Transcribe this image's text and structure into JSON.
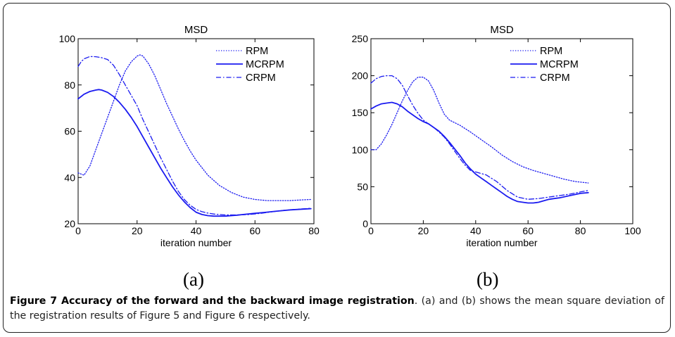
{
  "colors": {
    "line": "#1b1bf0",
    "axis": "#000000",
    "caption_text": "#222222"
  },
  "panel_labels": [
    "(a)",
    "(b)"
  ],
  "caption": {
    "title": "Figure 7 Accuracy of the forward and the backward image registration",
    "body": ". (a) and (b) shows the mean square deviation of the registration results of Figure 5 and Figure 6 respectively."
  },
  "chart_data": [
    {
      "type": "line",
      "title": "MSD",
      "xlabel": "iteration number",
      "ylabel": "",
      "xlim": [
        0,
        80
      ],
      "ylim": [
        20,
        100
      ],
      "xticks": [
        0,
        20,
        40,
        60,
        80
      ],
      "yticks": [
        20,
        40,
        60,
        80,
        100
      ],
      "legend_position": "top-right",
      "series": [
        {
          "name": "RPM",
          "style": "dotted",
          "x": [
            0,
            2,
            4,
            6,
            8,
            10,
            12,
            14,
            16,
            18,
            20,
            21,
            22,
            24,
            26,
            28,
            30,
            32,
            34,
            36,
            38,
            40,
            44,
            48,
            52,
            56,
            60,
            64,
            68,
            72,
            76,
            79
          ],
          "y": [
            42,
            41,
            45,
            52,
            59,
            66,
            73,
            80,
            86,
            90,
            92.5,
            93,
            92.5,
            89,
            84,
            78,
            72,
            66.5,
            61,
            56,
            51.5,
            47.5,
            41,
            36.5,
            33.5,
            31.5,
            30.5,
            30,
            30,
            30,
            30.3,
            30.5
          ]
        },
        {
          "name": "MCRPM",
          "style": "solid",
          "x": [
            0,
            2,
            4,
            6,
            7,
            8,
            10,
            12,
            14,
            16,
            18,
            20,
            22,
            24,
            26,
            28,
            30,
            32,
            34,
            36,
            38,
            40,
            42,
            44,
            46,
            48,
            50,
            52,
            54,
            56,
            60,
            64,
            68,
            72,
            76,
            79
          ],
          "y": [
            74,
            76,
            77.2,
            77.8,
            78,
            77.8,
            76.8,
            75,
            72.5,
            69.5,
            66,
            62,
            57.5,
            53,
            48.5,
            44,
            40,
            36,
            32.5,
            29.5,
            27,
            25,
            24,
            23.5,
            23.3,
            23.3,
            23.3,
            23.5,
            23.7,
            24,
            24.5,
            25,
            25.5,
            26,
            26.3,
            26.5
          ]
        },
        {
          "name": "CRPM",
          "style": "dashdot",
          "x": [
            0,
            1,
            2,
            4,
            6,
            8,
            10,
            12,
            14,
            16,
            18,
            20,
            22,
            24,
            26,
            28,
            30,
            32,
            34,
            36,
            38,
            40,
            42,
            44,
            46,
            48,
            50,
            54,
            58,
            62,
            66,
            70,
            74,
            79
          ],
          "y": [
            88,
            90,
            91.3,
            92.3,
            92.2,
            91.8,
            91,
            88.5,
            84.5,
            80,
            75.5,
            71,
            65,
            59.5,
            54,
            48.5,
            43.5,
            38.5,
            34,
            30.5,
            28,
            26.2,
            25.2,
            24.6,
            24.2,
            24,
            23.8,
            23.8,
            24,
            24.5,
            25.2,
            25.8,
            26.2,
            26.7
          ]
        }
      ]
    },
    {
      "type": "line",
      "title": "MSD",
      "xlabel": "iteration number",
      "ylabel": "",
      "xlim": [
        0,
        100
      ],
      "ylim": [
        0,
        250
      ],
      "xticks": [
        0,
        20,
        40,
        60,
        80,
        100
      ],
      "yticks": [
        0,
        50,
        100,
        150,
        200,
        250
      ],
      "legend_position": "top-right",
      "series": [
        {
          "name": "RPM",
          "style": "dotted",
          "x": [
            0,
            2,
            4,
            6,
            8,
            10,
            12,
            14,
            16,
            18,
            20,
            22,
            24,
            26,
            28,
            30,
            34,
            38,
            42,
            46,
            50,
            54,
            58,
            62,
            66,
            70,
            74,
            78,
            83
          ],
          "y": [
            100,
            100,
            108,
            120,
            134,
            150,
            166,
            180,
            192,
            198,
            198,
            193,
            180,
            163,
            148,
            140,
            133,
            124,
            114,
            104,
            93,
            84,
            77,
            72,
            68,
            64,
            60,
            57,
            55
          ]
        },
        {
          "name": "MCRPM",
          "style": "solid",
          "x": [
            0,
            2,
            4,
            6,
            8,
            10,
            12,
            14,
            16,
            18,
            20,
            22,
            24,
            26,
            28,
            30,
            32,
            34,
            36,
            38,
            40,
            42,
            44,
            46,
            48,
            50,
            52,
            54,
            56,
            58,
            60,
            62,
            64,
            66,
            68,
            70,
            72,
            76,
            80,
            83
          ],
          "y": [
            155,
            159,
            162,
            163,
            164,
            162,
            158,
            152,
            147,
            142,
            138,
            135,
            130,
            125,
            118,
            110,
            101,
            92,
            82,
            74,
            67,
            62,
            57,
            52,
            47,
            42,
            37,
            33,
            30,
            29,
            28,
            28,
            29,
            31,
            33,
            34,
            35,
            38,
            41,
            42
          ]
        },
        {
          "name": "CRPM",
          "style": "dashdot",
          "x": [
            0,
            2,
            4,
            6,
            8,
            10,
            12,
            14,
            16,
            18,
            20,
            22,
            24,
            26,
            28,
            30,
            32,
            34,
            36,
            38,
            40,
            44,
            48,
            52,
            56,
            60,
            64,
            68,
            72,
            76,
            80,
            83
          ],
          "y": [
            190,
            196,
            199,
            200,
            200,
            196,
            187,
            173,
            160,
            149,
            140,
            135,
            130,
            124,
            117,
            108,
            98,
            88,
            79,
            72,
            70,
            66,
            57,
            45,
            36,
            33,
            34,
            36,
            38,
            40,
            43,
            45
          ]
        }
      ]
    }
  ]
}
